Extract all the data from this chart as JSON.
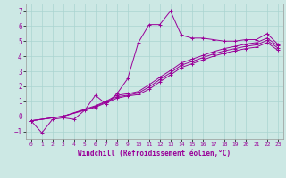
{
  "xlabel": "Windchill (Refroidissement éolien,°C)",
  "background_color": "#cce8e4",
  "grid_color": "#aad4d0",
  "line_color": "#990099",
  "xlim": [
    -0.5,
    23.5
  ],
  "ylim": [
    -1.5,
    7.5
  ],
  "xticks": [
    0,
    1,
    2,
    3,
    4,
    5,
    6,
    7,
    8,
    9,
    10,
    11,
    12,
    13,
    14,
    15,
    16,
    17,
    18,
    19,
    20,
    21,
    22,
    23
  ],
  "yticks": [
    -1,
    0,
    1,
    2,
    3,
    4,
    5,
    6,
    7
  ],
  "series": {
    "line1": {
      "x": [
        0,
        1,
        2,
        3,
        4,
        5,
        6,
        7,
        8,
        9,
        10,
        11,
        12,
        13,
        14,
        15,
        16,
        17,
        18,
        19,
        20,
        21,
        22,
        23
      ],
      "y": [
        -0.3,
        -1.1,
        -0.2,
        -0.1,
        -0.2,
        0.4,
        1.4,
        0.8,
        1.5,
        2.5,
        4.9,
        6.1,
        6.1,
        7.0,
        5.4,
        5.2,
        5.2,
        5.1,
        5.0,
        5.0,
        5.1,
        5.1,
        5.5,
        4.8
      ]
    },
    "line2": {
      "x": [
        0,
        3,
        6,
        7,
        8,
        9,
        10,
        11,
        12,
        13,
        14,
        15,
        16,
        17,
        18,
        19,
        20,
        21,
        22,
        23
      ],
      "y": [
        -0.3,
        0.0,
        0.7,
        1.0,
        1.4,
        1.5,
        1.65,
        2.1,
        2.6,
        3.05,
        3.55,
        3.8,
        4.05,
        4.3,
        4.5,
        4.65,
        4.8,
        4.9,
        5.2,
        4.7
      ]
    },
    "line3": {
      "x": [
        0,
        3,
        6,
        7,
        8,
        9,
        10,
        11,
        12,
        13,
        14,
        15,
        16,
        17,
        18,
        19,
        20,
        21,
        22,
        23
      ],
      "y": [
        -0.3,
        0.0,
        0.65,
        0.95,
        1.3,
        1.4,
        1.55,
        1.95,
        2.45,
        2.9,
        3.4,
        3.65,
        3.9,
        4.15,
        4.35,
        4.5,
        4.65,
        4.75,
        5.05,
        4.55
      ]
    },
    "line4": {
      "x": [
        0,
        3,
        6,
        7,
        8,
        9,
        10,
        11,
        12,
        13,
        14,
        15,
        16,
        17,
        18,
        19,
        20,
        21,
        22,
        23
      ],
      "y": [
        -0.3,
        0.0,
        0.6,
        0.9,
        1.2,
        1.35,
        1.45,
        1.8,
        2.3,
        2.75,
        3.25,
        3.5,
        3.75,
        4.0,
        4.2,
        4.35,
        4.5,
        4.6,
        4.9,
        4.4
      ]
    }
  }
}
